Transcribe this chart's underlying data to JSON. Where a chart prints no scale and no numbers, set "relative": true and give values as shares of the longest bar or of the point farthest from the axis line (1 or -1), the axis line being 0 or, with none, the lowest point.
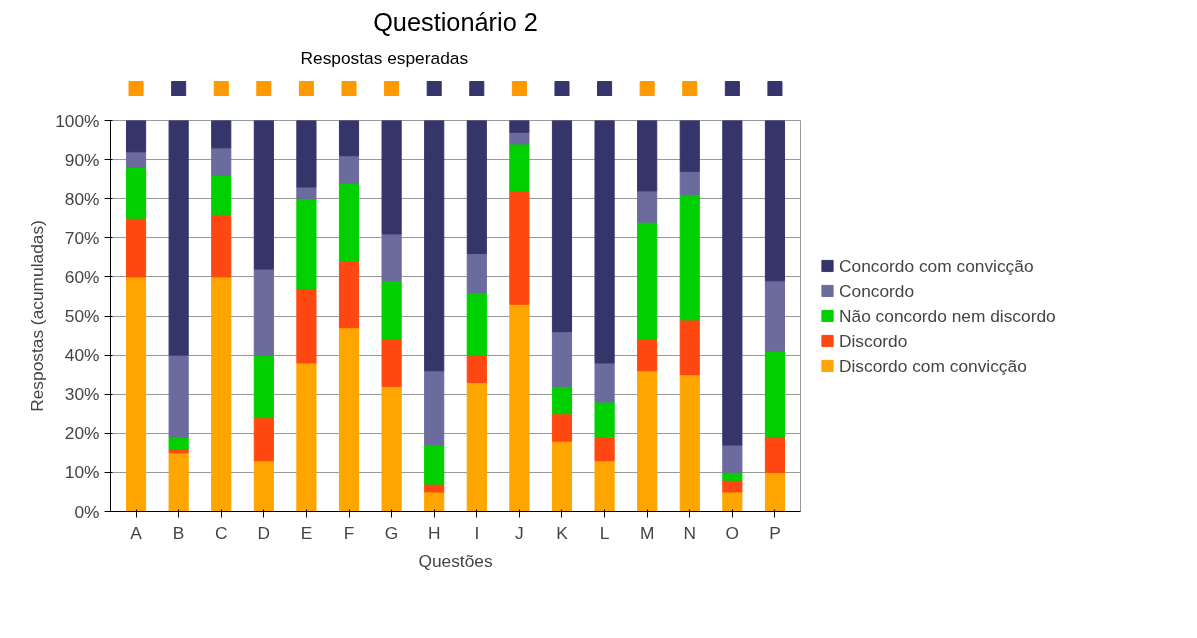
{
  "chart_data": [
    {
      "type": "bar",
      "title": "Questionário 2",
      "subtitle": "Respostas esperadas",
      "relative": true,
      "categories": [
        null,
        null,
        null,
        null,
        null,
        null,
        null,
        null,
        null,
        null,
        null,
        null,
        null,
        null,
        null,
        null
      ],
      "values": [
        1,
        1,
        1,
        1,
        1,
        1,
        1,
        1,
        1,
        1,
        1,
        1,
        1,
        1,
        1,
        1
      ],
      "colors": [
        "#ff9900",
        "#35356b",
        "#ff9900",
        "#ff9900",
        "#ff9900",
        "#ff9900",
        "#ff9900",
        "#35356b",
        "#35356b",
        "#ff9900",
        "#35356b",
        "#35356b",
        "#ff9900",
        "#ff9900",
        "#35356b",
        "#35356b"
      ]
    },
    {
      "type": "bar",
      "xlabel": "Questões",
      "ylabel": "Respostas (acumuladas)",
      "stacked": true,
      "categories": [
        "A",
        "B",
        "C",
        "D",
        "E",
        "F",
        "G",
        "H",
        "I",
        "J",
        "K",
        "L",
        "M",
        "N",
        "O",
        "P"
      ],
      "series": [
        {
          "name": "Discordo com convicção",
          "color": "#ffa500",
          "values": [
            60,
            15,
            60,
            13,
            38,
            47,
            32,
            5,
            33,
            53,
            18,
            13,
            36,
            35,
            5,
            10
          ]
        },
        {
          "name": "Discordo",
          "color": "#ff4711",
          "values": [
            15,
            1,
            16,
            11,
            19,
            17,
            12,
            2,
            7,
            29,
            7,
            6,
            8,
            14,
            3,
            9
          ]
        },
        {
          "name": "Não concordo nem discordo",
          "color": "#00d000",
          "values": [
            13,
            3,
            10,
            16,
            23,
            20,
            15,
            10,
            16,
            12,
            7,
            9,
            30,
            32,
            2,
            22
          ]
        },
        {
          "name": "Concordo",
          "color": "#6b6b9d",
          "values": [
            4,
            21,
            7,
            22,
            3,
            7,
            12,
            19,
            10,
            3,
            14,
            10,
            8,
            6,
            7,
            18
          ]
        },
        {
          "name": "Concordo com convicção",
          "color": "#35356b",
          "values": [
            8,
            60,
            7,
            38,
            17,
            9,
            29,
            64,
            34,
            3,
            54,
            62,
            18,
            13,
            83,
            41
          ]
        }
      ],
      "ylim": [
        0,
        100
      ],
      "yticks": [
        {
          "value": 0,
          "label": "0%"
        },
        {
          "value": 10,
          "label": "10%"
        },
        {
          "value": 20,
          "label": "20%"
        },
        {
          "value": 30,
          "label": "30%"
        },
        {
          "value": 40,
          "label": "40%"
        },
        {
          "value": 50,
          "label": "50%"
        },
        {
          "value": 60,
          "label": "60%"
        },
        {
          "value": 70,
          "label": "70%"
        },
        {
          "value": 80,
          "label": "80%"
        },
        {
          "value": 90,
          "label": "90%"
        },
        {
          "value": 100,
          "label": "100%"
        }
      ],
      "grid": "y",
      "legend": "right"
    }
  ]
}
